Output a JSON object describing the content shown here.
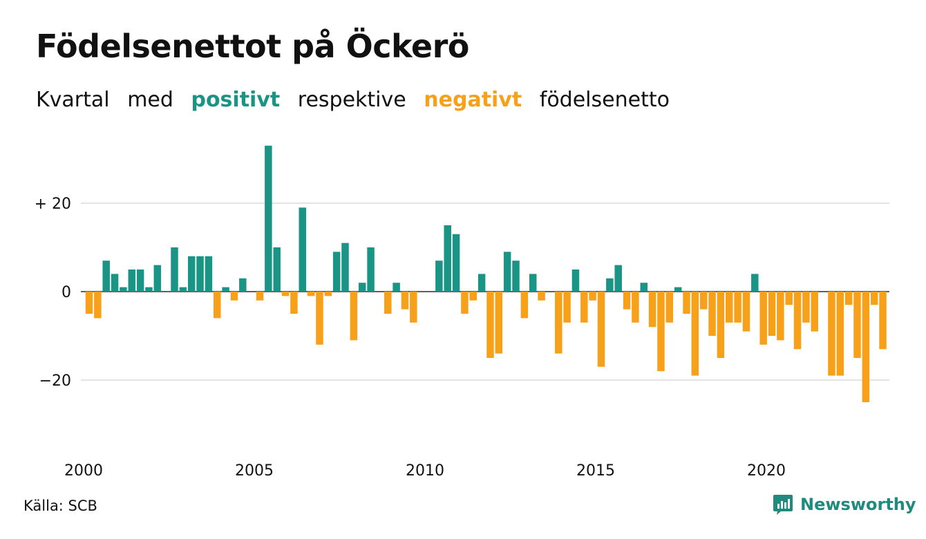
{
  "header": {
    "title": "Födelsenettot på Öckerö",
    "subtitle": {
      "w1": "Kvartal",
      "w2": "med",
      "positive": "positivt",
      "w3": "respektive",
      "negative": "negativt",
      "w4": "födelsenetto"
    }
  },
  "footer": {
    "source": "Källa: SCB",
    "brand": "Newsworthy"
  },
  "colors": {
    "positive": "#1a9485",
    "negative": "#f7a11a",
    "grid": "#e3e3e3",
    "brand": "#1f8a7d"
  },
  "chart_data": {
    "type": "bar",
    "granularity": "quarter",
    "start": "2000 Q1",
    "ylim": [
      -38,
      33
    ],
    "yticks": [
      {
        "value": 20,
        "label": "+ 20"
      },
      {
        "value": 0,
        "label": "0"
      },
      {
        "value": -20,
        "label": "−20"
      }
    ],
    "xticks": [
      {
        "year": 2000,
        "label": "2000"
      },
      {
        "year": 2005,
        "label": "2005"
      },
      {
        "year": 2010,
        "label": "2010"
      },
      {
        "year": 2015,
        "label": "2015"
      },
      {
        "year": 2020,
        "label": "2020"
      }
    ],
    "grid": true,
    "legend": "subtitle",
    "values": [
      -5,
      -6,
      7,
      4,
      1,
      5,
      5,
      1,
      6,
      0,
      10,
      1,
      8,
      8,
      8,
      -6,
      1,
      -2,
      3,
      0,
      -2,
      33,
      10,
      -1,
      -5,
      19,
      -1,
      -12,
      -1,
      9,
      11,
      -11,
      2,
      10,
      0,
      -5,
      2,
      -4,
      -7,
      0,
      0,
      7,
      15,
      13,
      -5,
      -2,
      4,
      -15,
      -14,
      9,
      7,
      -6,
      4,
      -2,
      0,
      -14,
      -7,
      5,
      -7,
      -2,
      -17,
      3,
      6,
      -4,
      -7,
      2,
      -8,
      -18,
      -7,
      1,
      -5,
      -19,
      -4,
      -10,
      -15,
      -7,
      -7,
      -9,
      4,
      -12,
      -10,
      -11,
      -3,
      -13,
      -7,
      -9,
      0,
      -19,
      -19,
      -3,
      -15,
      -25,
      -3,
      -13
    ]
  }
}
